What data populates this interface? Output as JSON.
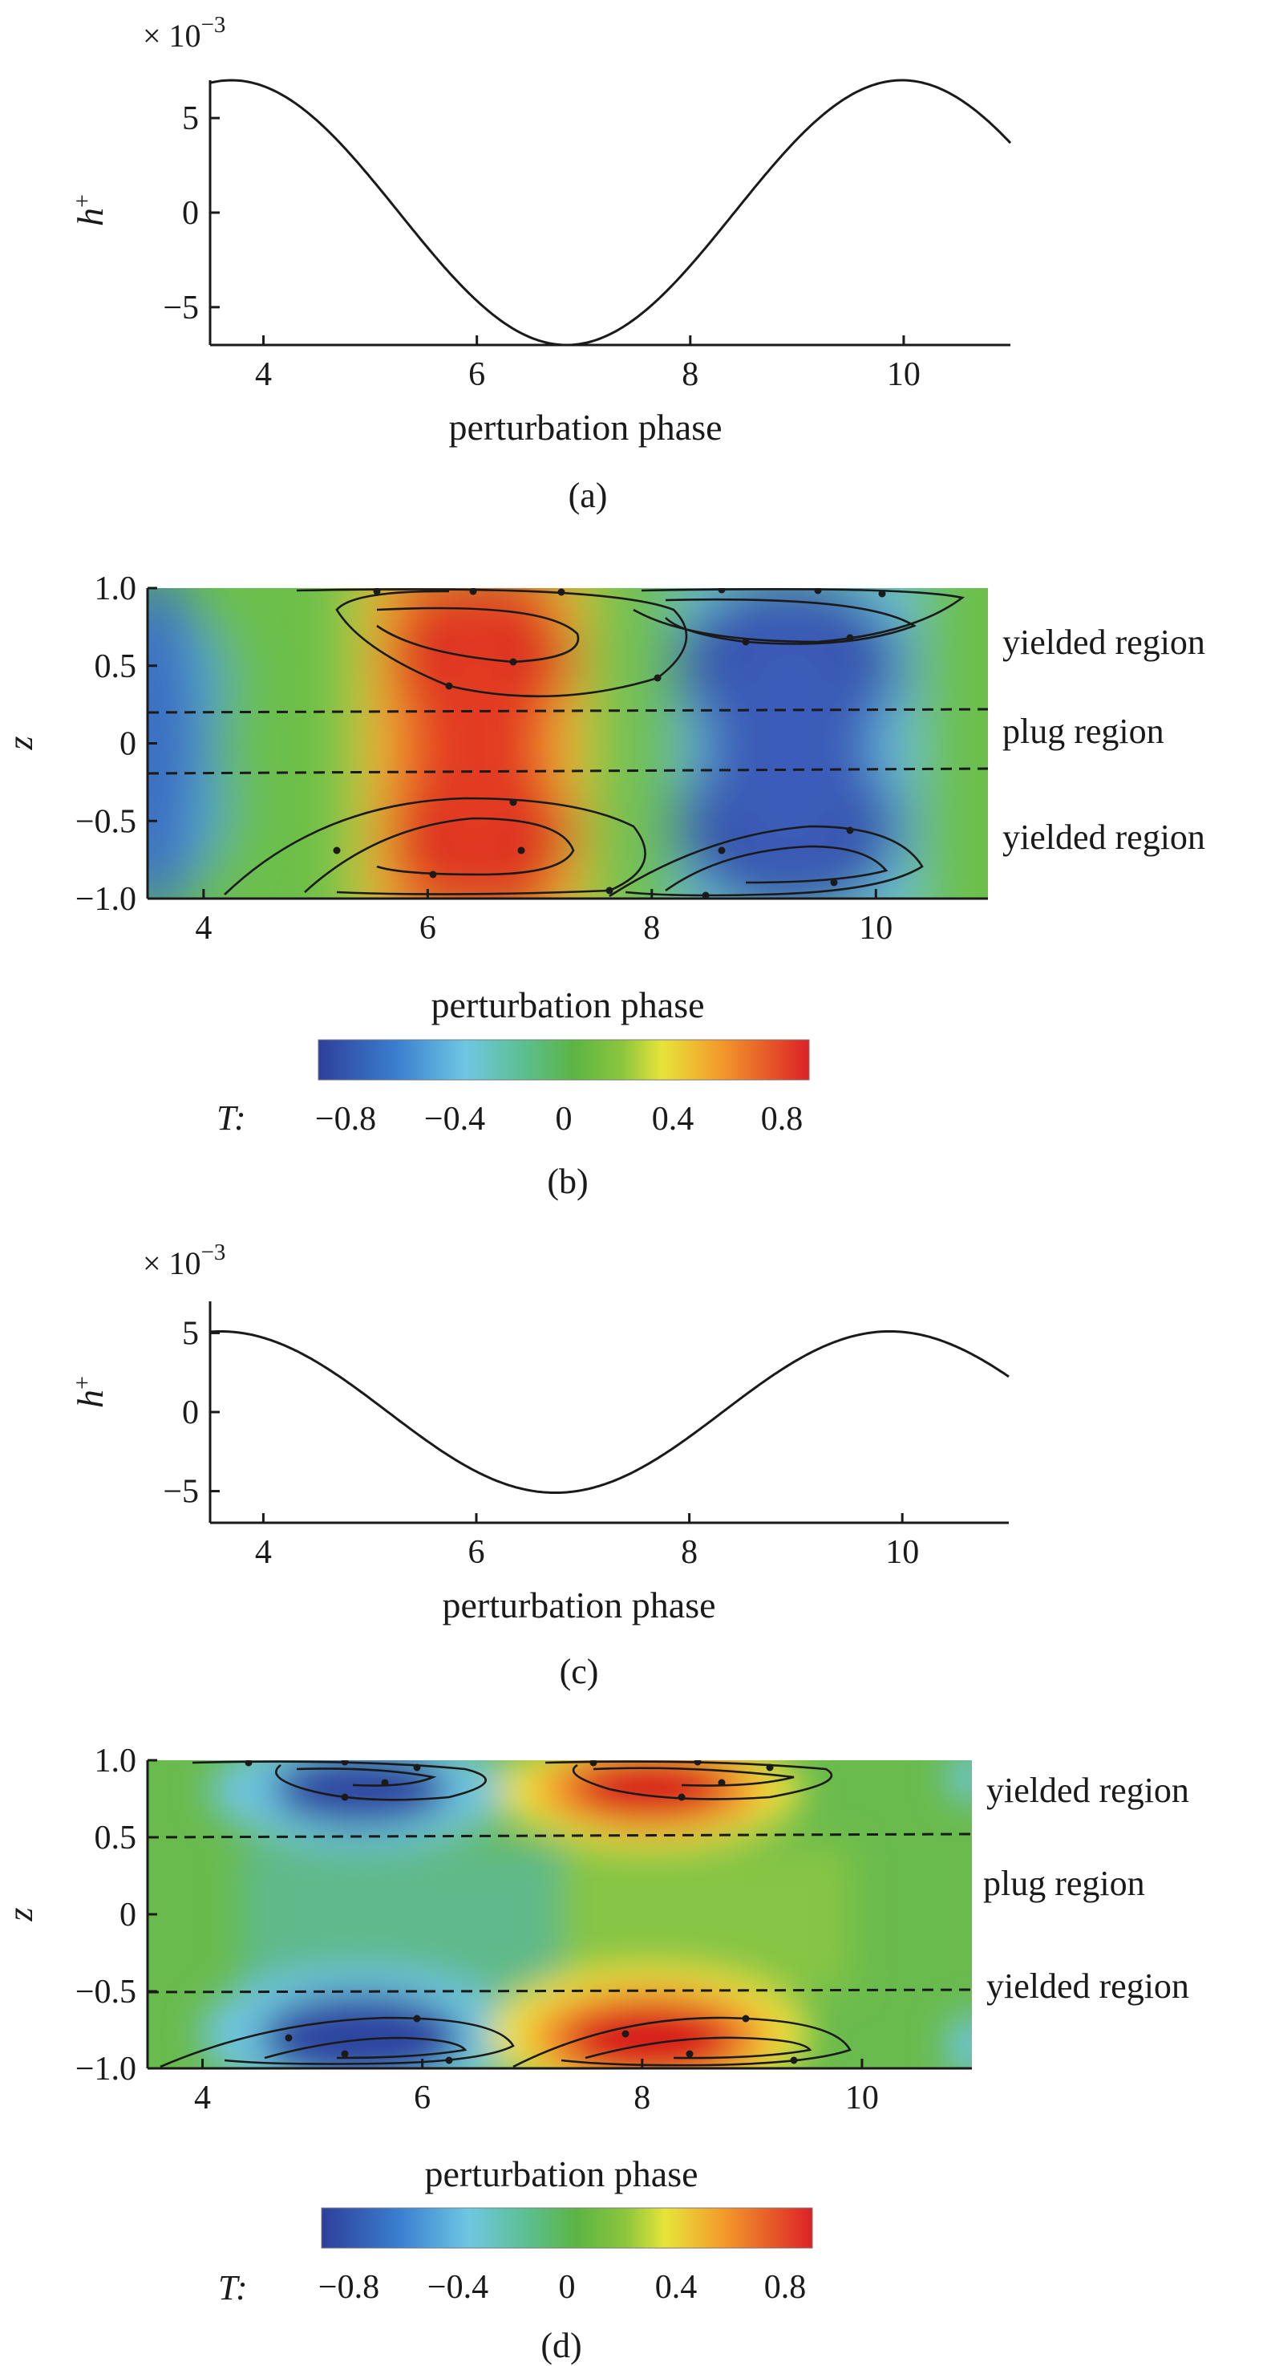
{
  "chart_data": [
    {
      "id": "a",
      "type": "line",
      "panel_label": "(a)",
      "xlabel": "perturbation phase",
      "ylabel_base": "h",
      "ylabel_sup": "+",
      "y_multiplier_base": "× 10",
      "y_multiplier_exp": "−3",
      "xlim": [
        3.5,
        11.0
      ],
      "ylim": [
        -7.0,
        7.0
      ],
      "xticks": [
        4,
        6,
        8,
        10
      ],
      "xtick_labels": [
        "4",
        "6",
        "8",
        "10"
      ],
      "yticks": [
        5,
        0,
        -5
      ],
      "ytick_labels": [
        "5",
        "0",
        "−5"
      ],
      "series": [
        {
          "function": "amplitude*cos(x - phase0)",
          "amplitude": 7.0,
          "phase0": 3.7,
          "x_range": [
            3.5,
            11.0
          ]
        }
      ]
    },
    {
      "id": "b",
      "type": "heatmap",
      "panel_label": "(b)",
      "xlabel": "perturbation phase",
      "ylabel": "z",
      "xlim": [
        3.5,
        11.0
      ],
      "ylim": [
        -1.0,
        1.0
      ],
      "xticks": [
        4,
        6,
        8,
        10
      ],
      "xtick_labels": [
        "4",
        "6",
        "8",
        "10"
      ],
      "yticks": [
        1.0,
        0.5,
        0,
        -0.5,
        -1.0
      ],
      "ytick_labels": [
        "1.0",
        "0.5",
        "0",
        "−0.5",
        "−1.0"
      ],
      "field": {
        "T_peak_phase": 6.5,
        "T_trough_phase": 9.6,
        "depth_pattern": "strong in yielded layers, weaker in plug"
      },
      "plug_boundaries_z": [
        0.2,
        -0.2
      ],
      "region_labels": [
        "yielded region",
        "plug region",
        "yielded region"
      ],
      "region_label_z": [
        0.6,
        0.0,
        -0.6
      ],
      "colorbar": {
        "label": "T:",
        "range": [
          -0.9,
          0.9
        ],
        "ticks": [
          -0.8,
          -0.4,
          0,
          0.4,
          0.8
        ],
        "tick_labels": [
          "−0.8",
          "−0.4",
          "0",
          "0.4",
          "0.8"
        ]
      }
    },
    {
      "id": "c",
      "type": "line",
      "panel_label": "(c)",
      "xlabel": "perturbation phase",
      "ylabel_base": "h",
      "ylabel_sup": "+",
      "y_multiplier_base": "× 10",
      "y_multiplier_exp": "−3",
      "xlim": [
        3.5,
        11.0
      ],
      "ylim": [
        -7.0,
        7.0
      ],
      "xticks": [
        4,
        6,
        8,
        10
      ],
      "xtick_labels": [
        "4",
        "6",
        "8",
        "10"
      ],
      "yticks": [
        5,
        0,
        -5
      ],
      "ytick_labels": [
        "5",
        "0",
        "−5"
      ],
      "series": [
        {
          "function": "amplitude*cos(x - phase0)",
          "amplitude": 5.1,
          "phase0": 3.6,
          "x_range": [
            3.5,
            11.0
          ]
        }
      ]
    },
    {
      "id": "d",
      "type": "heatmap",
      "panel_label": "(d)",
      "xlabel": "perturbation phase",
      "ylabel": "z",
      "xlim": [
        3.5,
        11.0
      ],
      "ylim": [
        -1.0,
        1.0
      ],
      "xticks": [
        4,
        6,
        8,
        10
      ],
      "xtick_labels": [
        "4",
        "6",
        "8",
        "10"
      ],
      "yticks": [
        1.0,
        0.5,
        0,
        -0.5,
        -1.0
      ],
      "ytick_labels": [
        "1.0",
        "0.5",
        "0",
        "−0.5",
        "−1.0"
      ],
      "field": {
        "top_blue_center": [
          5.5,
          0.85
        ],
        "top_red_center": [
          8.6,
          0.85
        ],
        "bottom_blue_center": [
          5.5,
          -0.82
        ],
        "bottom_red_center": [
          8.6,
          -0.82
        ],
        "depth_pattern": "confined near walls, sign flips between top and bottom"
      },
      "plug_boundaries_z": [
        0.6,
        -0.6
      ],
      "region_labels": [
        "yielded region",
        "plug region",
        "yielded region"
      ],
      "region_label_z": [
        0.82,
        0.2,
        -0.42
      ],
      "colorbar": {
        "label": "T:",
        "range": [
          -0.9,
          0.9
        ],
        "ticks": [
          -0.8,
          -0.4,
          0,
          0.4,
          0.8
        ],
        "tick_labels": [
          "−0.8",
          "−0.4",
          "0",
          "0.4",
          "0.8"
        ]
      }
    }
  ]
}
